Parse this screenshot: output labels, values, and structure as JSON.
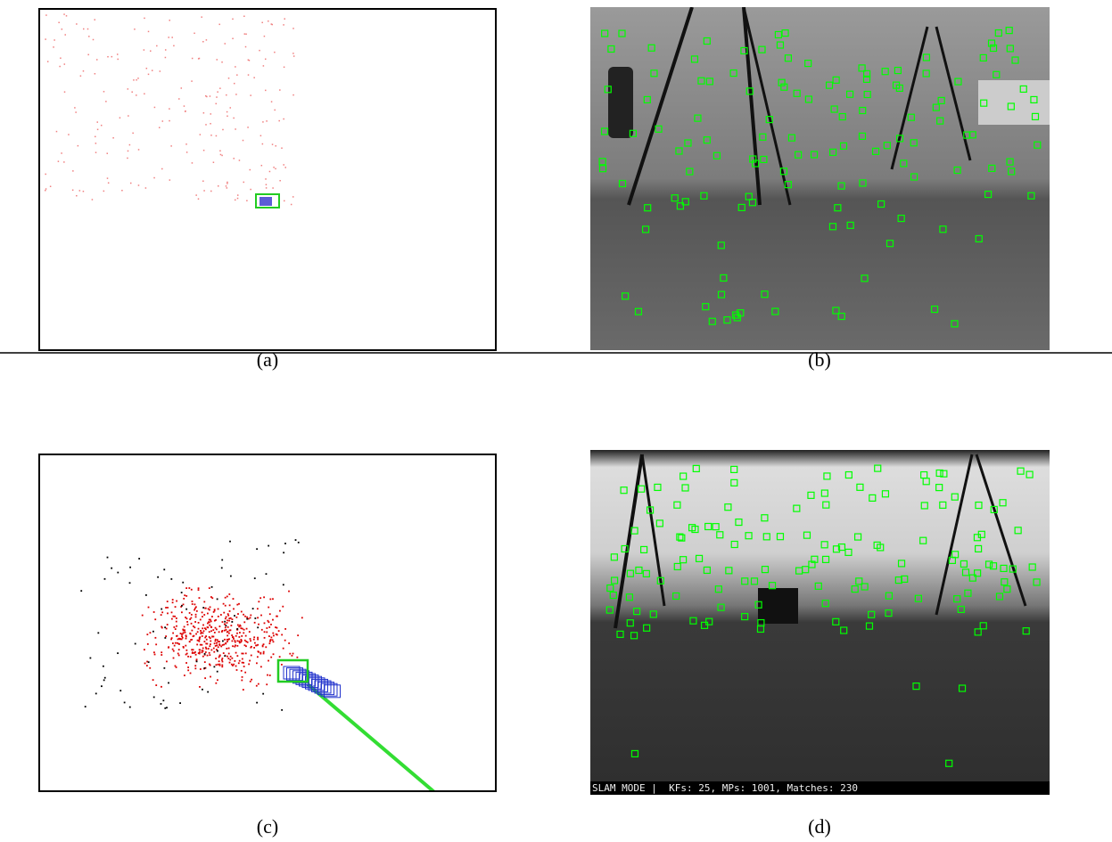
{
  "figure": {
    "panels": [
      {
        "caption": "(a)"
      },
      {
        "caption": "(b)"
      },
      {
        "caption": "(c)"
      },
      {
        "caption": "(d)",
        "status_bar": "SLAM MODE |  KFs: 25, MPs: 1001, Matches: 230"
      }
    ]
  }
}
